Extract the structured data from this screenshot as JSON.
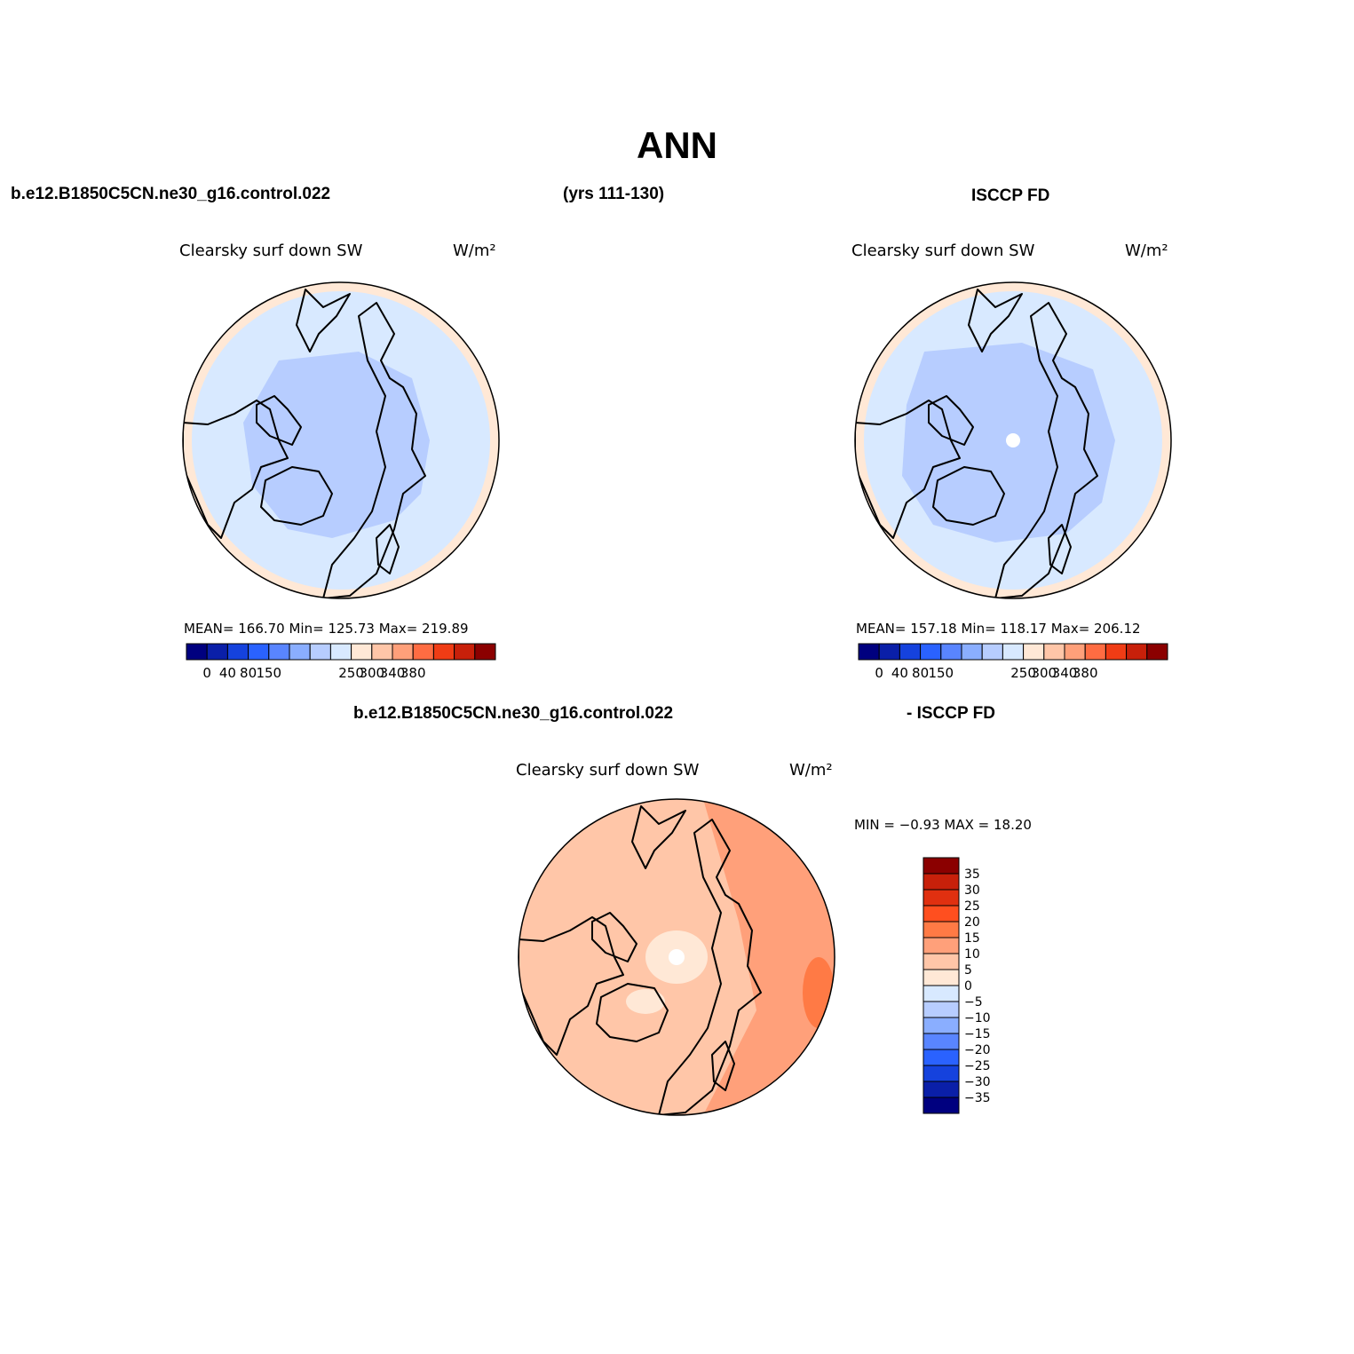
{
  "main_title": "ANN",
  "header": {
    "case_name": "b.e12.B1850C5CN.ne30_g16.control.022",
    "years": "(yrs 111-130)",
    "obs_name": "ISCCP FD",
    "diff_case": "b.e12.B1850C5CN.ne30_g16.control.022",
    "diff_obs": "- ISCCP FD"
  },
  "panels": [
    {
      "id": "model",
      "variable": "Clearsky surf down SW",
      "units": "W/m²",
      "stats": "MEAN= 166.70   Min= 125.73   Max= 219.89",
      "fill_pattern": "model",
      "colorbar_labels": [
        "0",
        "40",
        "80",
        "150",
        "250",
        "300",
        "340",
        "380"
      ]
    },
    {
      "id": "obs",
      "variable": "Clearsky surf down SW",
      "units": "W/m²",
      "stats": "MEAN= 157.18   Min= 118.17   Max= 206.12",
      "fill_pattern": "obs",
      "colorbar_labels": [
        "0",
        "40",
        "80",
        "150",
        "250",
        "300",
        "340",
        "380"
      ]
    },
    {
      "id": "diff",
      "variable": "Clearsky surf down SW",
      "units": "W/m²",
      "stats": "MIN =   −0.93 MAX =   18.20",
      "fill_pattern": "diff",
      "colorbar_labels": [
        "35",
        "30",
        "25",
        "20",
        "15",
        "10",
        "5",
        "0",
        "−5",
        "−10",
        "−15",
        "−20",
        "−25",
        "−30",
        "−35"
      ]
    }
  ],
  "colors": {
    "abs_scale": [
      "#00007f",
      "#0a1fa8",
      "#1542dd",
      "#2a62ff",
      "#5985ff",
      "#8aaeff",
      "#b7cdff",
      "#d8e9ff",
      "#ffe8d6",
      "#ffc6a8",
      "#ffa07a",
      "#ff6c42",
      "#f03c15",
      "#c8200a",
      "#8b0000"
    ],
    "diff_scale": [
      "#8b0000",
      "#c8200a",
      "#e03010",
      "#ff4f1f",
      "#ff7a45",
      "#ffa07a",
      "#ffc6a8",
      "#ffe8d6",
      "#d8e9ff",
      "#b7cdff",
      "#8aaeff",
      "#5985ff",
      "#2a62ff",
      "#1542dd",
      "#0a1fa8",
      "#00007f"
    ],
    "coastline": "#000000"
  }
}
